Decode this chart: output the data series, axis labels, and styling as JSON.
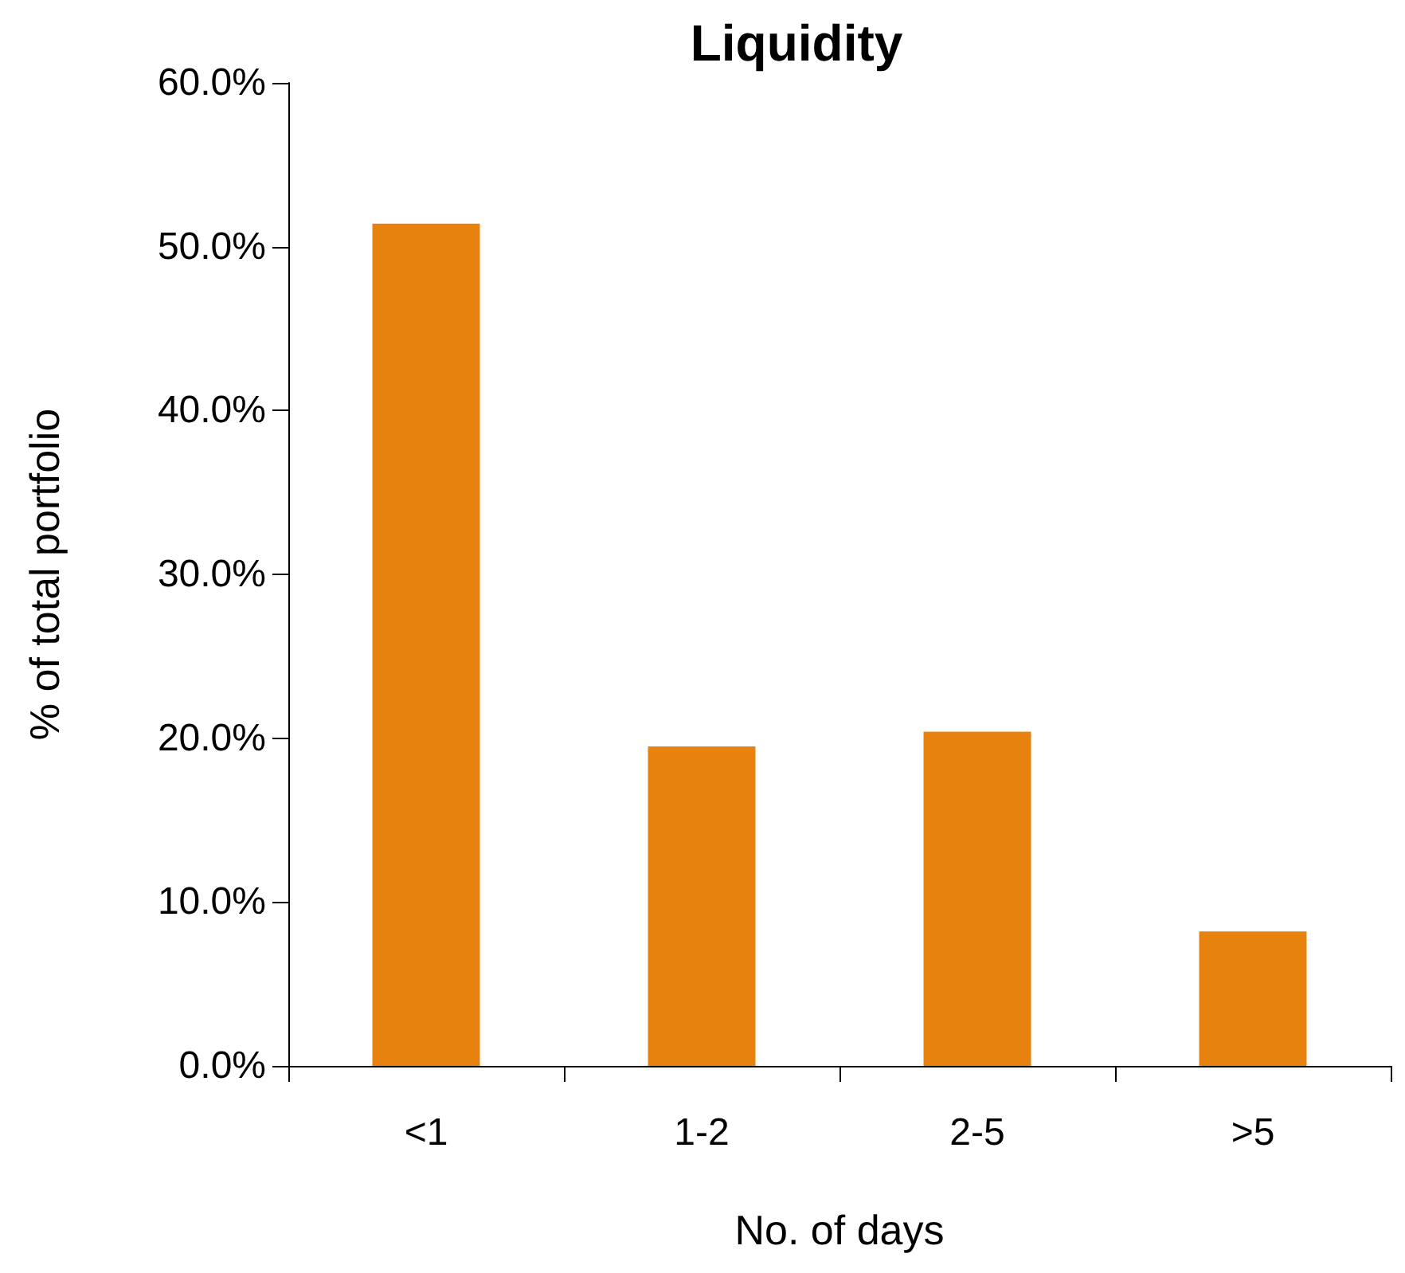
{
  "chart_data": {
    "type": "bar",
    "title": "Liquidity",
    "xlabel": "No. of days",
    "ylabel": "% of total portfolio",
    "categories": [
      "<1",
      "1-2",
      "2-5",
      ">5"
    ],
    "series": [
      {
        "color": "#e8820e",
        "values": [
          51.4,
          19.5,
          20.4,
          8.2
        ]
      }
    ],
    "ylim": [
      0,
      60
    ],
    "yticks": [
      {
        "value": 0,
        "label": "0.0%"
      },
      {
        "value": 10,
        "label": "10.0%"
      },
      {
        "value": 20,
        "label": "20.0%"
      },
      {
        "value": 30,
        "label": "30.0%"
      },
      {
        "value": 40,
        "label": "40.0%"
      },
      {
        "value": 50,
        "label": "50.0%"
      },
      {
        "value": 60,
        "label": "60.0%"
      }
    ],
    "grid": false
  }
}
